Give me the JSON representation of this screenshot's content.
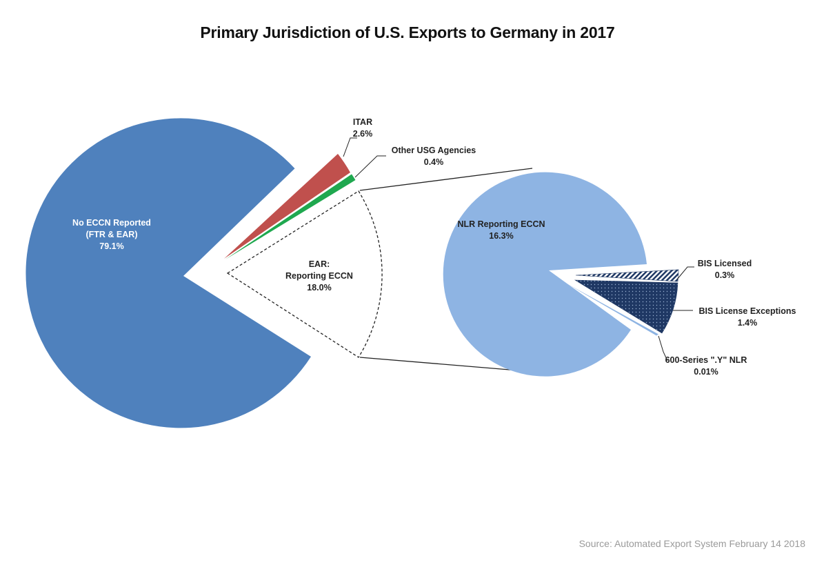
{
  "title": "Primary Jurisdiction of U.S. Exports to Germany in 2017",
  "source": "Source: Automated Export System February 14 2018",
  "chart_data": {
    "type": "pie",
    "title": "Primary Jurisdiction of U.S. Exports to Germany in 2017",
    "main_pie": {
      "slices": [
        {
          "lines": [
            "No ECCN Reported",
            "(FTR & EAR)",
            "79.1%"
          ],
          "value": 79.1,
          "color": "#4f81bd"
        },
        {
          "lines": [
            "ITAR",
            "2.6%"
          ],
          "value": 2.6,
          "color": "#c0504d"
        },
        {
          "lines": [
            "Other USG Agencies",
            "0.4%"
          ],
          "value": 0.4,
          "color": "#1fa84f"
        },
        {
          "lines": [
            "EAR:",
            "Reporting ECCN",
            "18.0%"
          ],
          "value": 18.0,
          "color": "none",
          "exploded_to_secondary": true
        }
      ]
    },
    "secondary_pie": {
      "slices": [
        {
          "lines": [
            "NLR Reporting ECCN",
            "16.3%"
          ],
          "value": 16.3,
          "color": "#8eb4e3"
        },
        {
          "lines": [
            "BIS Licensed",
            "0.3%"
          ],
          "value": 0.3,
          "color": "#1f3864",
          "pattern": "diagonal-hatch"
        },
        {
          "lines": [
            "BIS License Exceptions",
            "1.4%"
          ],
          "value": 1.4,
          "color": "#1f3864",
          "pattern": "dots"
        },
        {
          "lines": [
            "600-Series \".Y\" NLR",
            "0.01%"
          ],
          "value": 0.01,
          "color": "#8eb4e3"
        }
      ]
    },
    "legend": "none"
  }
}
